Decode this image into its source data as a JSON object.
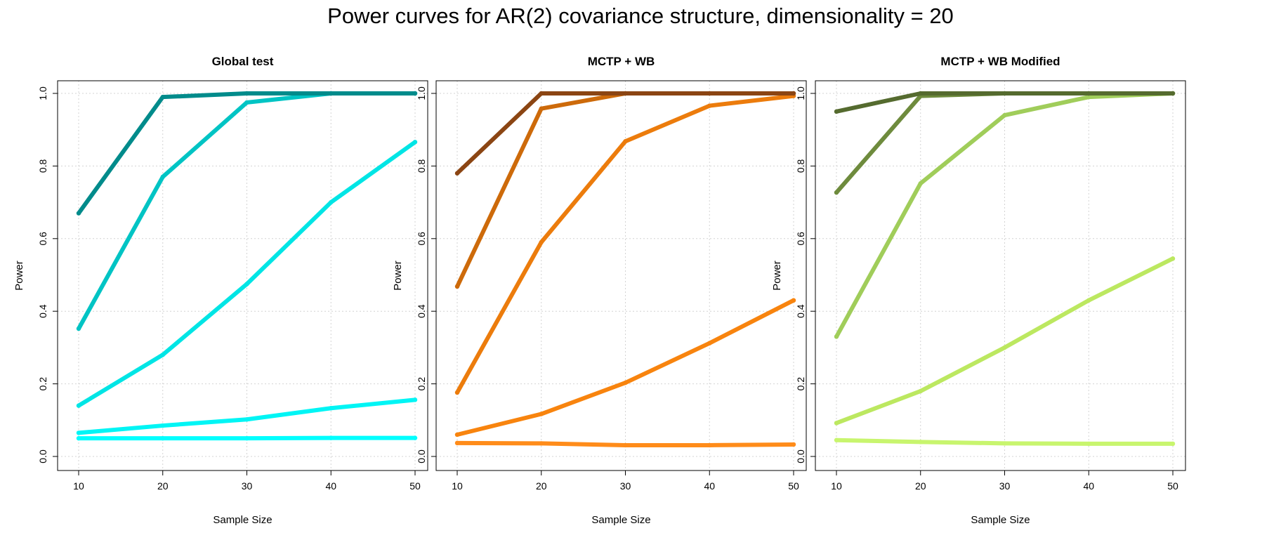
{
  "title": "Power curves for AR(2) covariance structure, dimensionality = 20",
  "chart_data": [
    {
      "type": "line",
      "title": "Global test",
      "xlabel": "Sample Size",
      "ylabel": "Power",
      "xlim": [
        10,
        50
      ],
      "ylim": [
        0,
        1
      ],
      "xticks": [
        "10",
        "20",
        "30",
        "40",
        "50"
      ],
      "yticks": [
        "0.0",
        "0.2",
        "0.4",
        "0.6",
        "0.8",
        "1.0"
      ],
      "grid": true,
      "x": [
        10,
        20,
        30,
        40,
        50
      ],
      "series": [
        {
          "values": [
            0.05,
            0.05,
            0.05,
            0.051,
            0.051
          ],
          "color": "#00ffff"
        },
        {
          "values": [
            0.065,
            0.085,
            0.102,
            0.133,
            0.156
          ],
          "color": "#00f5f5"
        },
        {
          "values": [
            0.14,
            0.28,
            0.475,
            0.7,
            0.866
          ],
          "color": "#00e5e5"
        },
        {
          "values": [
            0.352,
            0.77,
            0.975,
            1.0,
            1.0
          ],
          "color": "#00c4c4"
        },
        {
          "values": [
            0.67,
            0.99,
            1.0,
            1.0,
            1.0
          ],
          "color": "#008b8b"
        }
      ]
    },
    {
      "type": "line",
      "title": "MCTP + WB",
      "xlabel": "Sample Size",
      "ylabel": "Power",
      "xlim": [
        10,
        50
      ],
      "ylim": [
        0,
        1
      ],
      "xticks": [
        "10",
        "20",
        "30",
        "40",
        "50"
      ],
      "yticks": [
        "0.0",
        "0.2",
        "0.4",
        "0.6",
        "0.8",
        "1.0"
      ],
      "grid": true,
      "x": [
        10,
        20,
        30,
        40,
        50
      ],
      "series": [
        {
          "values": [
            0.037,
            0.036,
            0.031,
            0.031,
            0.033
          ],
          "color": "#ff8c1a"
        },
        {
          "values": [
            0.06,
            0.117,
            0.203,
            0.312,
            0.43
          ],
          "color": "#f8840e"
        },
        {
          "values": [
            0.176,
            0.59,
            0.868,
            0.966,
            0.993
          ],
          "color": "#ec7c0c"
        },
        {
          "values": [
            0.468,
            0.958,
            1.0,
            1.0,
            1.0
          ],
          "color": "#cd6a0a"
        },
        {
          "values": [
            0.78,
            1.0,
            1.0,
            1.0,
            1.0
          ],
          "color": "#8b4513"
        }
      ]
    },
    {
      "type": "line",
      "title": "MCTP + WB Modified",
      "xlabel": "Sample Size",
      "ylabel": "Power",
      "xlim": [
        10,
        50
      ],
      "ylim": [
        0,
        1
      ],
      "xticks": [
        "10",
        "20",
        "30",
        "40",
        "50"
      ],
      "yticks": [
        "0.0",
        "0.2",
        "0.4",
        "0.6",
        "0.8",
        "1.0"
      ],
      "grid": true,
      "x": [
        10,
        20,
        30,
        40,
        50
      ],
      "series": [
        {
          "values": [
            0.045,
            0.04,
            0.036,
            0.035,
            0.035
          ],
          "color": "#c8f56e"
        },
        {
          "values": [
            0.092,
            0.18,
            0.3,
            0.43,
            0.545
          ],
          "color": "#bce860"
        },
        {
          "values": [
            0.33,
            0.752,
            0.94,
            0.99,
            1.0
          ],
          "color": "#a0cd5a"
        },
        {
          "values": [
            0.727,
            0.993,
            1.0,
            1.0,
            1.0
          ],
          "color": "#6e8b3d"
        },
        {
          "values": [
            0.95,
            1.0,
            1.0,
            1.0,
            1.0
          ],
          "color": "#556b2f"
        }
      ]
    }
  ]
}
